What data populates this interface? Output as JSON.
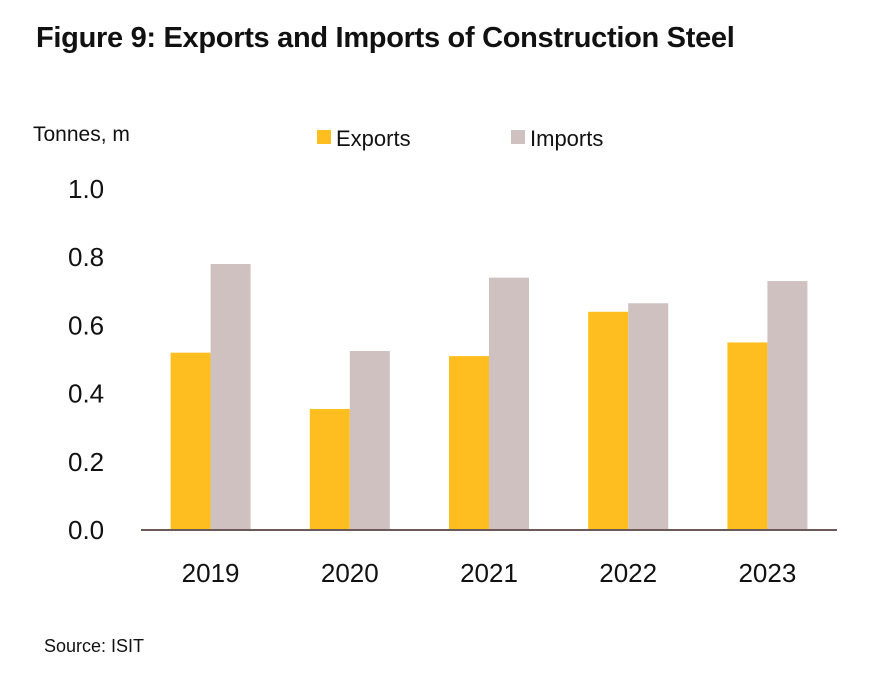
{
  "title": "Figure 9: Exports and Imports of Construction Steel",
  "source": "Source: ISIT",
  "colors": {
    "exports": "#FEBE1F",
    "imports": "#CEC1BF",
    "axis": "#6B5A57"
  },
  "chart_data": {
    "type": "bar",
    "title": "Figure 9: Exports and Imports of Construction Steel",
    "xlabel": "",
    "ylabel": "Tonnes, m",
    "ylim": [
      0,
      1.0
    ],
    "yticks": [
      "0.0",
      "0.2",
      "0.4",
      "0.6",
      "0.8",
      "1.0"
    ],
    "categories": [
      "2019",
      "2020",
      "2021",
      "2022",
      "2023"
    ],
    "series": [
      {
        "name": "Exports",
        "values": [
          0.52,
          0.355,
          0.51,
          0.64,
          0.55
        ]
      },
      {
        "name": "Imports",
        "values": [
          0.78,
          0.525,
          0.74,
          0.665,
          0.73
        ]
      }
    ],
    "legend": "top",
    "grid": false
  }
}
